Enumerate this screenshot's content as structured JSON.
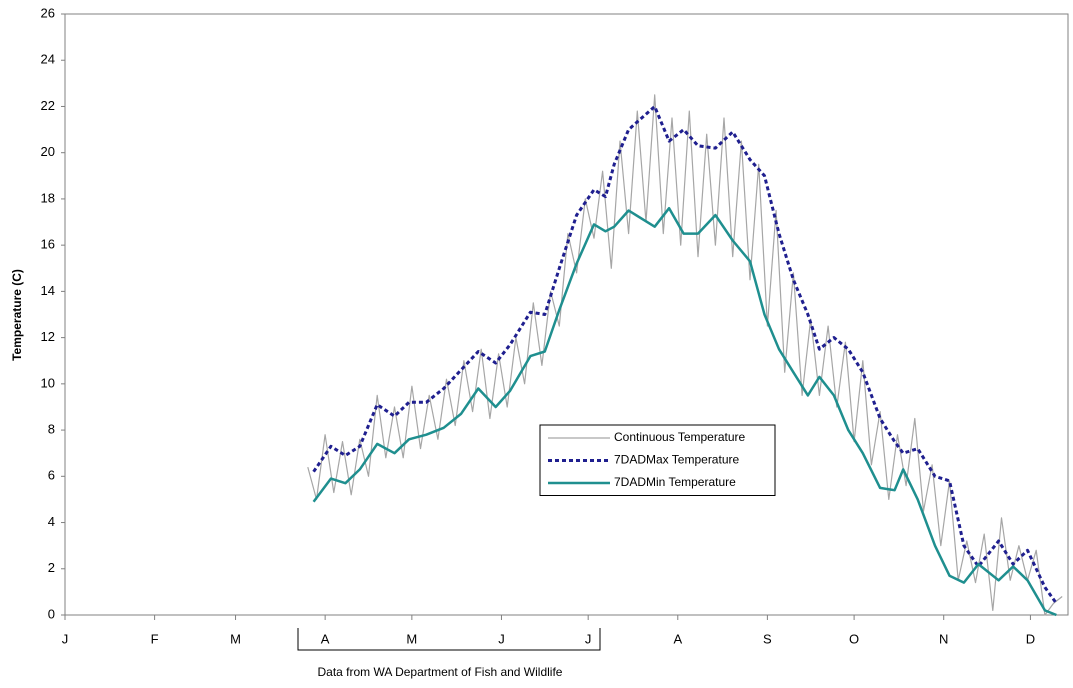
{
  "chart_data": {
    "type": "line",
    "y_label": "Temperature (C)",
    "annotation": "Data from WA Department of Fish and Wildlife",
    "xlim": [
      0,
      347
    ],
    "ylim": [
      0,
      26
    ],
    "yticks": [
      0,
      2,
      4,
      6,
      8,
      10,
      12,
      14,
      16,
      18,
      20,
      22,
      24,
      26
    ],
    "xticks": [
      {
        "value": 0,
        "label": "J"
      },
      {
        "value": 31,
        "label": "F"
      },
      {
        "value": 59,
        "label": "M"
      },
      {
        "value": 90,
        "label": "A"
      },
      {
        "value": 120,
        "label": "M"
      },
      {
        "value": 151,
        "label": "J"
      },
      {
        "value": 181,
        "label": "J"
      },
      {
        "value": 212,
        "label": "A"
      },
      {
        "value": 243,
        "label": "S"
      },
      {
        "value": 273,
        "label": "O"
      },
      {
        "value": 304,
        "label": "N"
      },
      {
        "value": 334,
        "label": "D"
      }
    ],
    "grid": false,
    "legend": "center",
    "series": [
      {
        "name": "Continuous Temperature",
        "color": "#a6a6a6",
        "style": "solid",
        "width": 1.2,
        "x": [
          84,
          87,
          90,
          93,
          96,
          99,
          102,
          105,
          108,
          111,
          114,
          117,
          120,
          123,
          126,
          129,
          132,
          135,
          138,
          141,
          144,
          147,
          150,
          153,
          156,
          159,
          162,
          165,
          168,
          171,
          174,
          177,
          180,
          183,
          186,
          189,
          192,
          195,
          198,
          201,
          204,
          207,
          210,
          213,
          216,
          219,
          222,
          225,
          228,
          231,
          234,
          237,
          240,
          243,
          246,
          249,
          252,
          255,
          258,
          261,
          264,
          267,
          270,
          273,
          276,
          279,
          282,
          285,
          288,
          291,
          294,
          297,
          300,
          303,
          306,
          309,
          312,
          315,
          318,
          321,
          324,
          327,
          330,
          333,
          336,
          339,
          342,
          345
        ],
        "values": [
          6.4,
          5.0,
          7.8,
          5.3,
          7.5,
          5.2,
          7.6,
          6.0,
          9.5,
          6.8,
          9.0,
          6.8,
          9.9,
          7.2,
          9.5,
          7.6,
          10.2,
          8.2,
          11.0,
          8.8,
          11.5,
          8.5,
          11.3,
          9.0,
          12.0,
          10.0,
          13.5,
          10.8,
          14.0,
          12.5,
          16.5,
          14.8,
          18.0,
          16.3,
          19.2,
          15.0,
          20.5,
          16.5,
          21.8,
          17.0,
          22.5,
          16.5,
          21.5,
          16.0,
          21.8,
          15.5,
          20.8,
          16.0,
          21.5,
          15.5,
          20.5,
          14.5,
          19.5,
          12.5,
          17.5,
          10.5,
          14.8,
          9.5,
          12.8,
          9.5,
          12.5,
          9.0,
          11.8,
          7.5,
          11.0,
          6.5,
          8.8,
          5.0,
          7.8,
          5.6,
          8.5,
          4.5,
          6.5,
          3.0,
          5.8,
          1.5,
          3.2,
          1.4,
          3.5,
          0.2,
          4.2,
          1.5,
          3.0,
          1.5,
          2.8,
          0.0,
          0.5,
          0.8
        ]
      },
      {
        "name": "7DADMax Temperature",
        "color": "#1f1f8f",
        "style": "dotted",
        "width": 3,
        "x": [
          86,
          92,
          97,
          102,
          108,
          114,
          119,
          125,
          131,
          137,
          143,
          149,
          154,
          161,
          166,
          171,
          177,
          183,
          187,
          190,
          195,
          204,
          209,
          214,
          219,
          225,
          231,
          237,
          242,
          247,
          252,
          257,
          261,
          266,
          271,
          276,
          282,
          287,
          290,
          295,
          301,
          306,
          311,
          316,
          323,
          328,
          333,
          339,
          343
        ],
        "values": [
          6.2,
          7.3,
          6.9,
          7.3,
          9.1,
          8.6,
          9.2,
          9.2,
          9.8,
          10.6,
          11.4,
          10.9,
          11.7,
          13.1,
          13.0,
          15.0,
          17.3,
          18.4,
          18.1,
          19.5,
          21.0,
          22.0,
          20.5,
          21.0,
          20.3,
          20.2,
          20.9,
          19.7,
          19.0,
          16.5,
          14.5,
          13.0,
          11.5,
          12.0,
          11.5,
          10.5,
          8.5,
          7.5,
          7.0,
          7.2,
          6.0,
          5.8,
          3.0,
          2.1,
          3.2,
          2.2,
          2.8,
          1.2,
          0.5
        ]
      },
      {
        "name": "7DADMin Temperature",
        "color": "#1f8f8f",
        "style": "solid",
        "width": 2.5,
        "x": [
          86,
          92,
          97,
          102,
          108,
          114,
          119,
          125,
          131,
          137,
          143,
          149,
          154,
          161,
          166,
          171,
          177,
          183,
          187,
          190,
          195,
          204,
          209,
          214,
          219,
          225,
          231,
          237,
          242,
          247,
          252,
          257,
          261,
          266,
          271,
          276,
          282,
          287,
          290,
          295,
          301,
          306,
          311,
          316,
          323,
          328,
          333,
          339,
          343
        ],
        "values": [
          4.9,
          5.9,
          5.7,
          6.3,
          7.4,
          7.0,
          7.6,
          7.8,
          8.1,
          8.7,
          9.8,
          9.0,
          9.7,
          11.2,
          11.4,
          13.2,
          15.2,
          16.9,
          16.6,
          16.8,
          17.5,
          16.8,
          17.6,
          16.5,
          16.5,
          17.3,
          16.2,
          15.3,
          13.0,
          11.5,
          10.5,
          9.5,
          10.3,
          9.5,
          8.0,
          7.0,
          5.5,
          5.4,
          6.3,
          5.0,
          3.0,
          1.7,
          1.4,
          2.2,
          1.5,
          2.1,
          1.5,
          0.2,
          0.0
        ]
      }
    ]
  }
}
